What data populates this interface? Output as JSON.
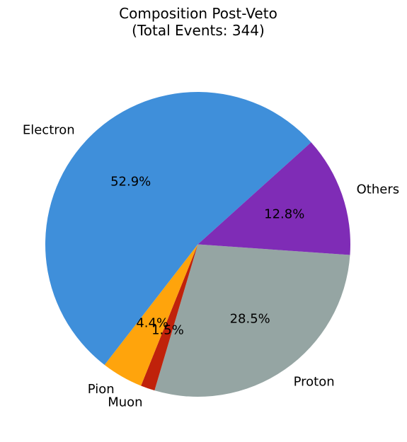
{
  "chart_data": {
    "type": "pie",
    "title_lines": [
      "Composition Post-Veto",
      "(Total Events: 344)"
    ],
    "slices": [
      {
        "label": "Proton",
        "pct_label": "28.5%",
        "value": 28.5,
        "color": "#95a5a3"
      },
      {
        "label": "Muon",
        "pct_label": "1.5%",
        "value": 1.5,
        "color": "#c0220b"
      },
      {
        "label": "Pion",
        "pct_label": "4.4%",
        "value": 4.4,
        "color": "#ffa40c"
      },
      {
        "label": "Electron",
        "pct_label": "52.9%",
        "value": 52.9,
        "color": "#3f8fda"
      },
      {
        "label": "Others",
        "pct_label": "12.8%",
        "value": 12.8,
        "color": "#7f2cb6"
      }
    ],
    "direction": "clockwise",
    "legend": "none"
  }
}
